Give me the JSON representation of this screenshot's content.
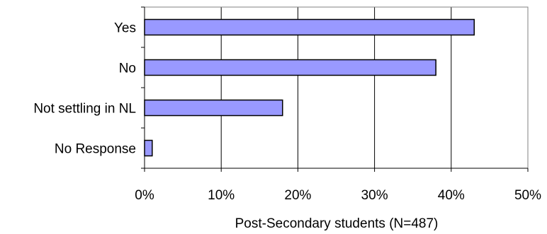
{
  "chart_data": {
    "type": "bar",
    "orientation": "horizontal",
    "categories": [
      "Yes",
      "No",
      "Not settling in NL",
      "No Response"
    ],
    "values": [
      43,
      38,
      18,
      1
    ],
    "unit": "%",
    "title": "",
    "xlabel": "Post-Secondary students (N=487)",
    "ylabel": "",
    "xlim": [
      0,
      50
    ],
    "xticks": [
      0,
      10,
      20,
      30,
      40,
      50
    ],
    "xtick_labels": [
      "0%",
      "10%",
      "20%",
      "30%",
      "40%",
      "50%"
    ],
    "grid": "vertical",
    "legend": "none",
    "bar_color": "#9999ff",
    "bar_edge_color": "#000000",
    "grid_color": "#000000"
  }
}
